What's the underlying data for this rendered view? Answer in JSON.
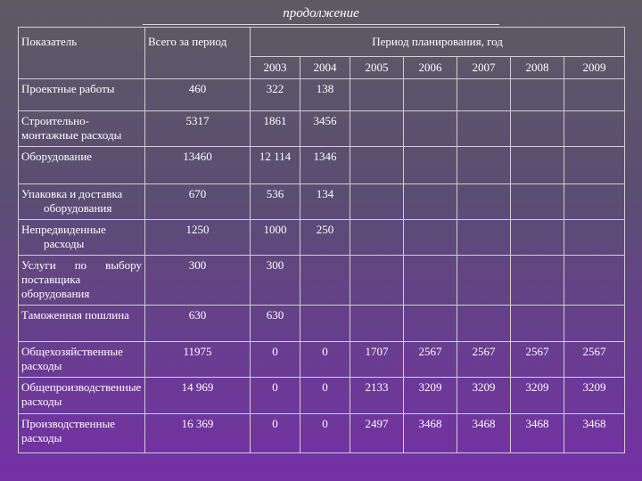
{
  "caption": "продолжение",
  "table": {
    "headers": {
      "indicator": "Показатель",
      "total": "Всего за период",
      "period": "Период планирования, год",
      "years": [
        "2003",
        "2004",
        "2005",
        "2006",
        "2007",
        "2008",
        "2009"
      ]
    },
    "rows": [
      {
        "label": "Проектные работы",
        "values": [
          "460",
          "322",
          "138",
          "",
          "",
          "",
          "",
          ""
        ]
      },
      {
        "label": "Строительно-монтажные расходы",
        "values": [
          "5317",
          "1861",
          "3456",
          "",
          "",
          "",
          "",
          ""
        ]
      },
      {
        "label": "Оборудование",
        "values": [
          "13460",
          "12 114",
          "1346",
          "",
          "",
          "",
          "",
          ""
        ]
      },
      {
        "label": "Упаковка и доставка оборудования",
        "values": [
          "670",
          "536",
          "134",
          "",
          "",
          "",
          "",
          ""
        ]
      },
      {
        "label": "Непредвиденные расходы",
        "values": [
          "1250",
          "1000",
          "250",
          "",
          "",
          "",
          "",
          ""
        ]
      },
      {
        "label": "Услуги по выбору поставщика оборудования",
        "values": [
          "300",
          "300",
          "",
          "",
          "",
          "",
          "",
          ""
        ]
      },
      {
        "label": "Таможенная пошлина",
        "values": [
          "630",
          "630",
          "",
          "",
          "",
          "",
          "",
          ""
        ]
      },
      {
        "label": "Общехозяйственные расходы",
        "values": [
          "11975",
          "0",
          "0",
          "1707",
          "2567",
          "2567",
          "2567",
          "2567"
        ]
      },
      {
        "label": "Общепроизводственные расходы",
        "values": [
          "14 969",
          "0",
          "0",
          "2133",
          "3209",
          "3209",
          "3209",
          "3209"
        ]
      },
      {
        "label": "Производственные расходы",
        "values": [
          "16 369",
          "0",
          "0",
          "2497",
          "3468",
          "3468",
          "3468",
          "3468"
        ]
      }
    ]
  }
}
